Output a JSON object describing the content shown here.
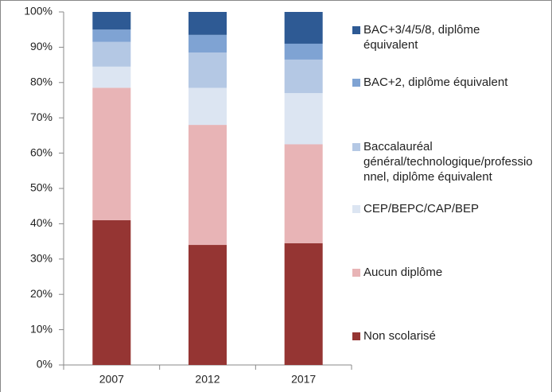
{
  "chart_data": {
    "type": "stacked_bar",
    "categories": [
      "2007",
      "2012",
      "2017"
    ],
    "series": [
      {
        "name": "Non scolarisé",
        "color": "#953533",
        "values": [
          41,
          34,
          34.5
        ]
      },
      {
        "name": "Aucun diplôme",
        "color": "#e8b4b6",
        "values": [
          37.5,
          34,
          28
        ]
      },
      {
        "name": "CEP/BEPC/CAP/BEP",
        "color": "#dce5f2",
        "values": [
          6,
          10.5,
          14.5
        ]
      },
      {
        "name": "Baccalauréal général/technologique/professionnel, diplôme équivalent",
        "color": "#b4c8e4",
        "values": [
          7,
          10,
          9.5
        ]
      },
      {
        "name": "BAC+2, diplôme équivalent",
        "color": "#7fa3d3",
        "values": [
          3.5,
          5,
          4.5
        ]
      },
      {
        "name": "BAC+3/4/5/8, diplôme équivalent",
        "color": "#2e5a94",
        "values": [
          5,
          6.5,
          9
        ]
      }
    ],
    "ylim": [
      0,
      100
    ],
    "yticks": [
      {
        "value": 0,
        "label": "0%"
      },
      {
        "value": 10,
        "label": "10%"
      },
      {
        "value": 20,
        "label": "20%"
      },
      {
        "value": 30,
        "label": "30%"
      },
      {
        "value": 40,
        "label": "40%"
      },
      {
        "value": 50,
        "label": "50%"
      },
      {
        "value": 60,
        "label": "60%"
      },
      {
        "value": 70,
        "label": "70%"
      },
      {
        "value": 80,
        "label": "80%"
      },
      {
        "value": 90,
        "label": "90%"
      },
      {
        "value": 100,
        "label": "100%"
      }
    ],
    "grid": false
  }
}
